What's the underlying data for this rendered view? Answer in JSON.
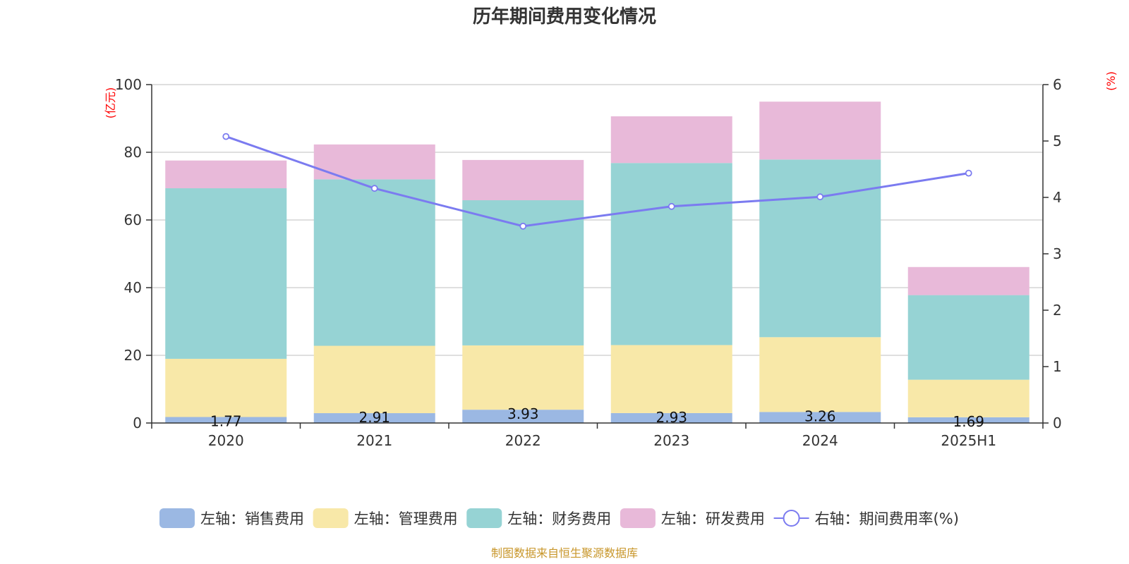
{
  "chart_data": {
    "type": "bar",
    "title": "历年期间费用变化情况",
    "categories": [
      "2020",
      "2021",
      "2022",
      "2023",
      "2024",
      "2025H1"
    ],
    "left_axis": {
      "unit": "(亿元)",
      "ylim": [
        0,
        100
      ],
      "ticks": [
        "0",
        "20",
        "40",
        "60",
        "80",
        "100"
      ]
    },
    "right_axis": {
      "unit": "(%)",
      "ylim": [
        0,
        6
      ],
      "ticks": [
        "0",
        "1",
        "2",
        "3",
        "4",
        "5",
        "6"
      ]
    },
    "series": [
      {
        "name": "左轴：销售费用",
        "type": "bar",
        "axis": "left",
        "color": "#9bb8e3",
        "values": [
          1.77,
          2.91,
          3.93,
          2.93,
          3.26,
          1.69
        ],
        "labels": [
          "1.77",
          "2.91",
          "3.93",
          "2.93",
          "3.26",
          "1.69"
        ]
      },
      {
        "name": "左轴：管理费用",
        "type": "bar",
        "axis": "left",
        "color": "#f8e8a8",
        "values": [
          17.2,
          19.9,
          19.0,
          20.1,
          22.1,
          11.1
        ]
      },
      {
        "name": "左轴：财务费用",
        "type": "bar",
        "axis": "left",
        "color": "#96d3d4",
        "values": [
          50.4,
          49.2,
          42.9,
          53.8,
          52.5,
          25.0
        ]
      },
      {
        "name": "左轴：研发费用",
        "type": "bar",
        "axis": "left",
        "color": "#e8b9d9",
        "values": [
          8.2,
          10.3,
          11.9,
          13.8,
          17.1,
          8.3
        ]
      },
      {
        "name": "右轴：期间费用率(%)",
        "type": "line",
        "axis": "right",
        "color": "#7b7bf0",
        "values": [
          5.08,
          4.16,
          3.49,
          3.84,
          4.01,
          4.43
        ]
      }
    ],
    "legend_position": "bottom",
    "grid": true
  },
  "footer": "制图数据来自恒生聚源数据库"
}
